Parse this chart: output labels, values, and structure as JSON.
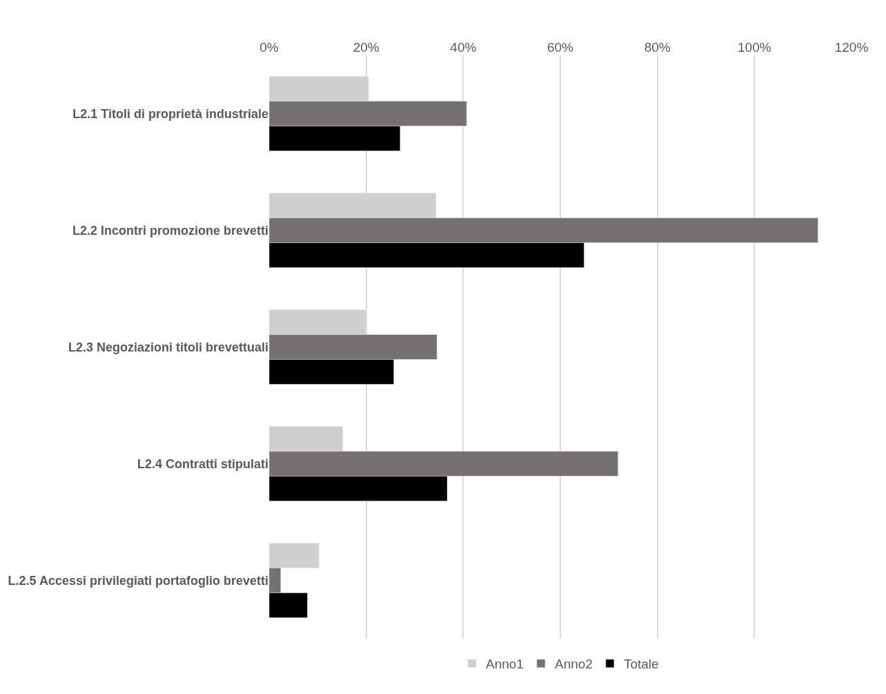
{
  "chart_data": {
    "type": "bar",
    "orientation": "horizontal",
    "categories": [
      "L2.1 Titoli di proprietà industriale",
      "L2.2 Incontri promozione brevetti",
      "L2.3 Negoziazioni titoli brevettuali",
      "L2.4 Contratti stipulati",
      "L.2.5 Accessi privilegiati portafoglio brevetti"
    ],
    "series": [
      {
        "name": "Anno1",
        "color": "#d0cece",
        "values": [
          20.5,
          34.4,
          19.9,
          15.2,
          10.3
        ]
      },
      {
        "name": "Anno2",
        "color": "#767171",
        "values": [
          40.7,
          113.1,
          34.6,
          71.9,
          2.4
        ]
      },
      {
        "name": "Totale",
        "color": "#000000",
        "values": [
          27.0,
          64.9,
          25.7,
          36.7,
          7.9
        ]
      }
    ],
    "xlim": [
      0,
      120
    ],
    "xticks": [
      {
        "value": 0,
        "label": "0%"
      },
      {
        "value": 20,
        "label": "20%"
      },
      {
        "value": 40,
        "label": "40%"
      },
      {
        "value": 60,
        "label": "60%"
      },
      {
        "value": 80,
        "label": "80%"
      },
      {
        "value": 100,
        "label": "100%"
      },
      {
        "value": 120,
        "label": "120%"
      }
    ],
    "grid": "x",
    "legend": "bottom"
  }
}
